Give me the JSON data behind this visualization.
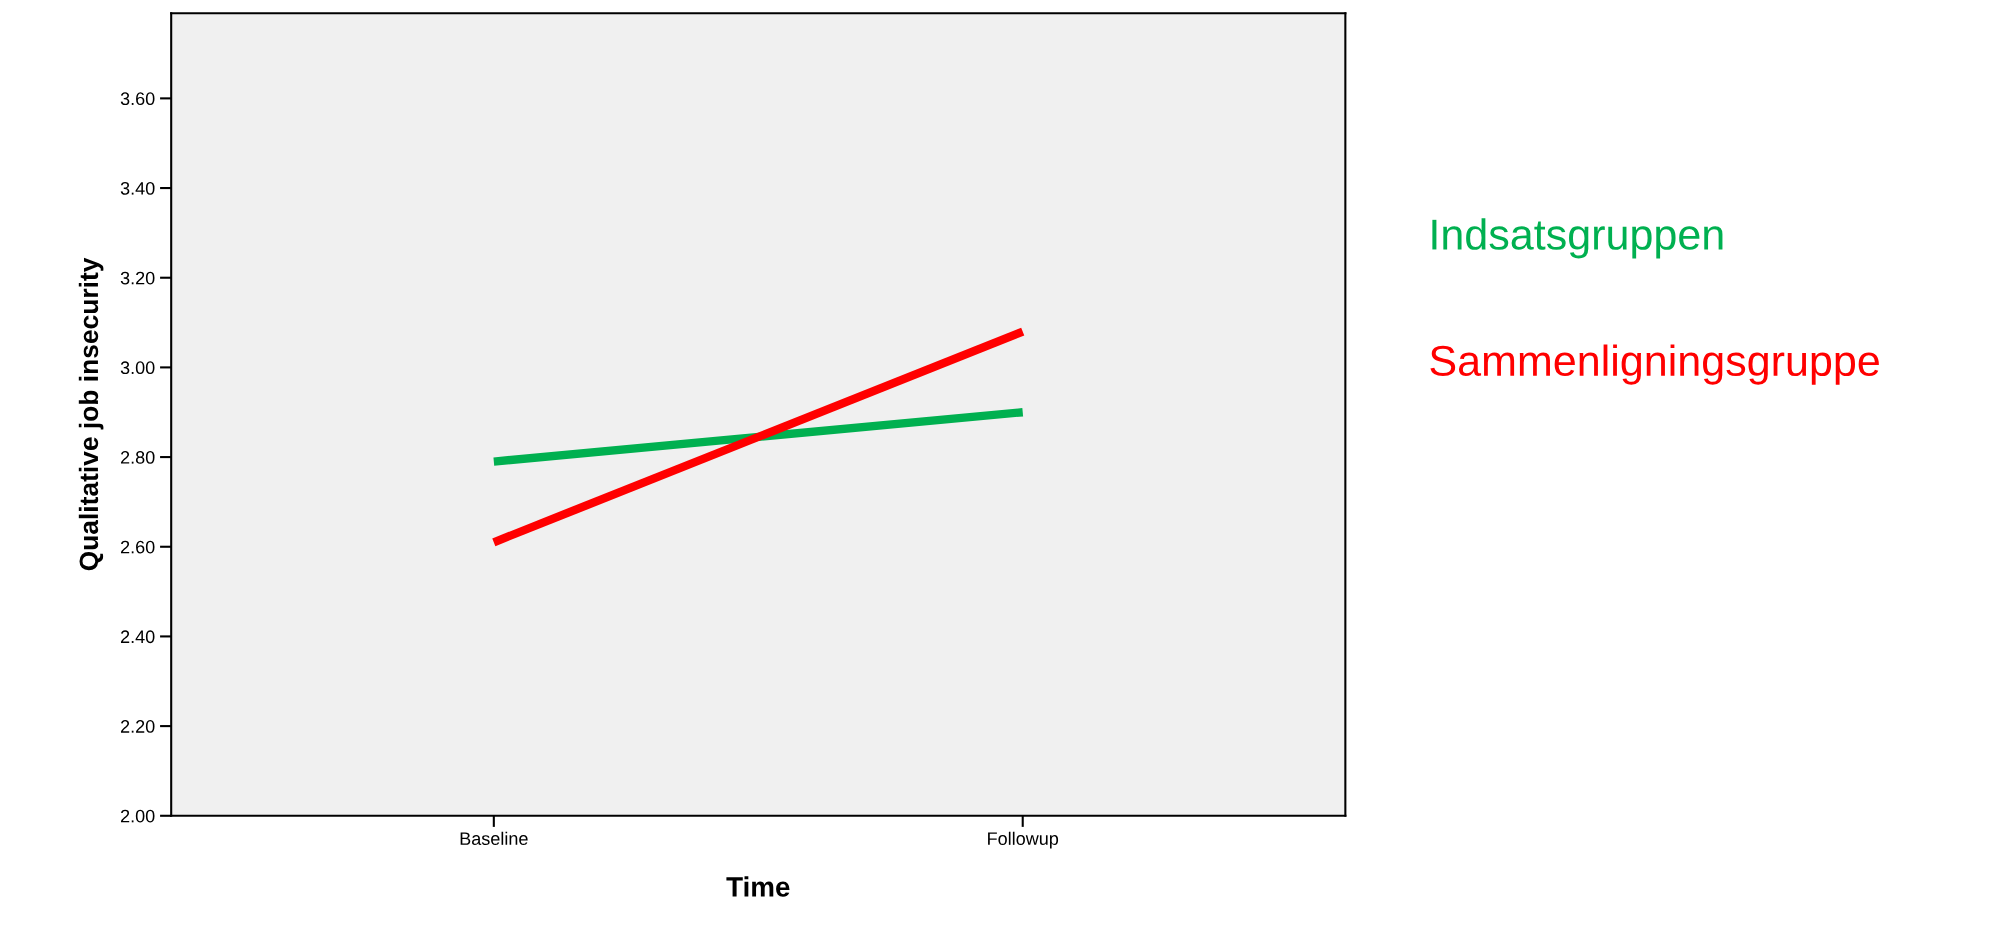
{
  "chart_data": {
    "type": "line",
    "xlabel": "Time",
    "ylabel": "Qualitative job insecurity",
    "categories": [
      "Baseline",
      "Followup"
    ],
    "series": [
      {
        "name": "Indsatsgruppen",
        "color": "#00b050",
        "values": [
          2.79,
          2.9
        ]
      },
      {
        "name": "Sammenligningsgruppe",
        "color": "#ff0000",
        "values": [
          2.61,
          3.08
        ]
      }
    ],
    "ylim": [
      2.0,
      3.79
    ],
    "yticks": [
      {
        "value": 2.0,
        "label": "2.00"
      },
      {
        "value": 2.2,
        "label": "2.20"
      },
      {
        "value": 2.4,
        "label": "2.40"
      },
      {
        "value": 2.6,
        "label": "2.60"
      },
      {
        "value": 2.8,
        "label": "2.80"
      },
      {
        "value": 3.0,
        "label": "3.00"
      },
      {
        "value": 3.2,
        "label": "3.20"
      },
      {
        "value": 3.4,
        "label": "3.40"
      },
      {
        "value": 3.6,
        "label": "3.60"
      }
    ],
    "legend": "right",
    "grid": false,
    "marker": "none",
    "line_style": "solid"
  }
}
